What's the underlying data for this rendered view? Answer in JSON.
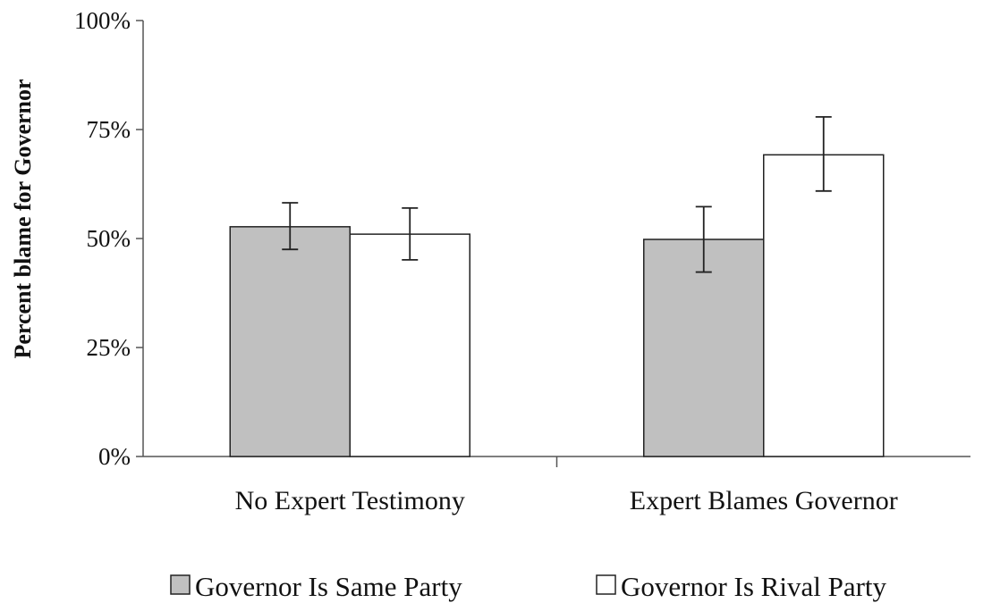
{
  "chart_data": {
    "type": "bar",
    "title": "",
    "xlabel": "",
    "ylabel": "Percent blame for Governor",
    "ylim": [
      0,
      100
    ],
    "yticks": [
      "0%",
      "25%",
      "50%",
      "75%",
      "100%"
    ],
    "ytick_values": [
      0,
      25,
      50,
      75,
      100
    ],
    "grid": false,
    "legend_position": "bottom",
    "categories": [
      "No Expert Testimony",
      "Expert Blames Governor"
    ],
    "series": [
      {
        "name": "Governor Is Same Party",
        "color": "#c0c0c0",
        "values": [
          52.7,
          49.8
        ],
        "error_low": [
          47.5,
          42.3
        ],
        "error_high": [
          58.2,
          57.3
        ]
      },
      {
        "name": "Governor Is Rival Party",
        "color": "#ffffff",
        "values": [
          51.0,
          69.2
        ],
        "error_low": [
          45.1,
          60.9
        ],
        "error_high": [
          57.0,
          77.9
        ]
      }
    ]
  }
}
